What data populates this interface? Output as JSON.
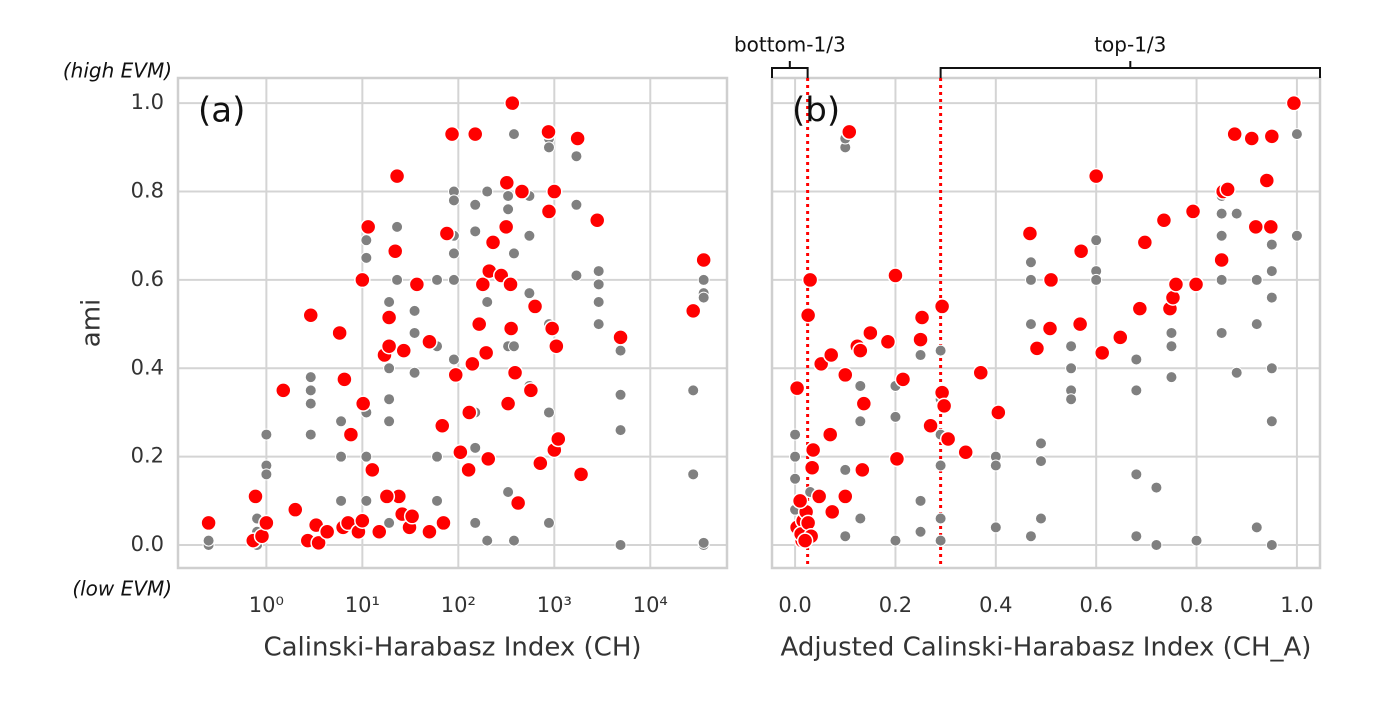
{
  "chart_data": [
    {
      "type": "scatter",
      "xscale": "log",
      "grid": true,
      "xlabel": "Calinski-Harabasz Index (CH)",
      "ylabel": "ami",
      "annotations": {
        "top": "(high EVM)",
        "bottom": "(low EVM)",
        "panel": "(a)"
      },
      "xlim": [
        0.12,
        63000
      ],
      "ylim": [
        -0.052,
        1.057
      ],
      "xticks": [
        {
          "value": 1,
          "label": "10⁰"
        },
        {
          "value": 10,
          "label": "10¹"
        },
        {
          "value": 100,
          "label": "10²"
        },
        {
          "value": 1000,
          "label": "10³"
        },
        {
          "value": 10000,
          "label": "10⁴"
        }
      ],
      "yticks": [
        {
          "value": 0,
          "label": "0.0"
        },
        0.2,
        0.4,
        0.6,
        0.8,
        {
          "value": 1,
          "label": "1.0"
        }
      ],
      "series": [
        {
          "color": "#808080",
          "x": [
            0.25,
            0.25,
            0.8,
            0.8,
            0.8,
            1,
            1,
            1,
            2.9,
            2.9,
            2.9,
            2.9,
            6,
            6,
            6,
            11,
            11,
            11,
            11,
            11,
            19,
            19,
            19,
            19,
            19,
            23,
            23,
            23,
            35,
            35,
            35,
            60,
            60,
            60,
            60,
            90,
            90,
            90,
            90,
            90,
            90,
            150,
            150,
            150,
            150,
            150,
            200,
            200,
            200,
            200,
            330,
            330,
            330,
            330,
            380,
            380,
            380,
            380,
            550,
            550,
            550,
            550,
            880,
            880,
            880,
            880,
            880,
            880,
            1700,
            1700,
            1700,
            2900,
            2900,
            2900,
            2900,
            4900,
            4900,
            4900,
            4900,
            28000,
            28000,
            36000,
            36000,
            36000,
            36000,
            36000
          ],
          "y": [
            0,
            0.01,
            0.06,
            0.03,
            0,
            0.18,
            0.16,
            0.25,
            0.38,
            0.35,
            0.32,
            0.25,
            0.1,
            0.2,
            0.28,
            0.69,
            0.65,
            0.3,
            0.2,
            0.1,
            0.55,
            0.4,
            0.33,
            0.28,
            0.05,
            0.72,
            0.6,
            0.67,
            0.48,
            0.53,
            0.39,
            0.6,
            0.45,
            0.2,
            0.1,
            0.8,
            0.78,
            0.7,
            0.66,
            0.6,
            0.42,
            0.77,
            0.71,
            0.3,
            0.22,
            0.05,
            0.8,
            0.55,
            0.2,
            0.01,
            0.79,
            0.76,
            0.45,
            0.12,
            0.93,
            0.66,
            0.45,
            0.01,
            0.79,
            0.7,
            0.57,
            0.36,
            0.92,
            0.9,
            0.75,
            0.5,
            0.3,
            0.05,
            0.88,
            0.77,
            0.61,
            0.62,
            0.59,
            0.55,
            0.5,
            0.44,
            0.34,
            0.26,
            0,
            0.35,
            0.16,
            0.6,
            0.57,
            0.56,
            0,
            0.005
          ]
        },
        {
          "color": "#ff0000",
          "x": [
            0.25,
            0.77,
            0.73,
            0.9,
            1.5,
            1.0,
            2.0,
            2.9,
            3.3,
            2.7,
            3.5,
            4.3,
            5.8,
            6.5,
            6.3,
            7.1,
            7.6,
            10,
            11.5,
            10.2,
            12.7,
            9.1,
            10,
            15,
            17,
            19,
            19,
            22,
            23,
            24,
            18,
            26,
            27,
            31,
            33,
            37,
            50,
            50,
            68,
            70,
            76,
            86,
            94,
            105,
            128,
            130,
            140,
            150,
            165,
            180,
            195,
            205,
            210,
            230,
            280,
            315,
            320,
            330,
            350,
            355,
            365,
            390,
            420,
            460,
            570,
            630,
            715,
            870,
            880,
            950,
            1000,
            1000,
            1050,
            1100,
            1750,
            1900,
            2800,
            4900,
            28000,
            36000
          ],
          "y": [
            0.05,
            0.11,
            0.01,
            0.02,
            0.35,
            0.05,
            0.08,
            0.52,
            0.045,
            0.01,
            0.005,
            0.03,
            0.48,
            0.375,
            0.04,
            0.05,
            0.25,
            0.6,
            0.72,
            0.32,
            0.17,
            0.03,
            0.055,
            0.03,
            0.43,
            0.45,
            0.515,
            0.665,
            0.835,
            0.11,
            0.11,
            0.07,
            0.44,
            0.04,
            0.065,
            0.59,
            0.46,
            0.03,
            0.27,
            0.05,
            0.705,
            0.93,
            0.385,
            0.21,
            0.17,
            0.3,
            0.41,
            0.93,
            0.5,
            0.59,
            0.435,
            0.195,
            0.62,
            0.685,
            0.61,
            0.72,
            0.82,
            0.32,
            0.59,
            0.49,
            1.0,
            0.39,
            0.095,
            0.8,
            0.35,
            0.54,
            0.185,
            0.935,
            0.755,
            0.49,
            0.215,
            0.8,
            0.45,
            0.24,
            0.92,
            0.16,
            0.735,
            0.47,
            0.53,
            0.645
          ]
        }
      ]
    },
    {
      "type": "scatter",
      "grid": true,
      "ytick_labels": false,
      "xlabel": "Adjusted Calinski-Harabasz Index  (CH_A)",
      "annotations": {
        "panel": "(b)"
      },
      "regions": [
        "bottom-1/3",
        "top-1/3"
      ],
      "thresholds": [
        0.025,
        0.29
      ],
      "threshold_color": "#ff0000",
      "xlim": [
        -0.046,
        1.046
      ],
      "ylim": [
        -0.052,
        1.057
      ],
      "xticks": [
        {
          "value": 0,
          "label": "0.0"
        },
        0.2,
        0.4,
        0.6,
        0.8,
        {
          "value": 1,
          "label": "1.0"
        }
      ],
      "yticks": [
        0,
        0.2,
        0.4,
        0.6,
        0.8,
        1
      ],
      "series": [
        {
          "color": "#808080",
          "x": [
            0,
            0,
            0,
            0,
            0,
            0.03,
            0.03,
            0.1,
            0.1,
            0.1,
            0.1,
            0.13,
            0.13,
            0.13,
            0.2,
            0.2,
            0.2,
            0.2,
            0.25,
            0.25,
            0.25,
            0.29,
            0.29,
            0.29,
            0.29,
            0.29,
            0.29,
            0.4,
            0.4,
            0.4,
            0.47,
            0.47,
            0.47,
            0.47,
            0.49,
            0.49,
            0.49,
            0.55,
            0.55,
            0.55,
            0.55,
            0.6,
            0.6,
            0.6,
            0.68,
            0.68,
            0.68,
            0.68,
            0.72,
            0.72,
            0.75,
            0.75,
            0.75,
            0.8,
            0.85,
            0.85,
            0.85,
            0.85,
            0.85,
            0.88,
            0.88,
            0.92,
            0.92,
            0.92,
            0.92,
            0.95,
            0.95,
            0.95,
            0.95,
            0.95,
            0.95,
            1.0,
            1.0
          ],
          "y": [
            0.25,
            0.2,
            0.15,
            0.08,
            0.04,
            0.05,
            0.12,
            0.9,
            0.92,
            0.17,
            0.02,
            0.36,
            0.28,
            0.06,
            0.36,
            0.29,
            0.2,
            0.01,
            0.43,
            0.1,
            0.03,
            0.44,
            0.33,
            0.25,
            0.18,
            0.06,
            0.01,
            0.2,
            0.18,
            0.04,
            0.64,
            0.6,
            0.5,
            0.02,
            0.23,
            0.19,
            0.06,
            0.45,
            0.4,
            0.35,
            0.33,
            0.69,
            0.62,
            0.6,
            0.42,
            0.35,
            0.16,
            0.02,
            0.13,
            0,
            0.48,
            0.45,
            0.38,
            0.01,
            0.79,
            0.75,
            0.7,
            0.6,
            0.48,
            0.75,
            0.39,
            0.72,
            0.6,
            0.5,
            0.04,
            0.68,
            0.62,
            0.56,
            0.4,
            0.28,
            0,
            0.93,
            0.7
          ]
        },
        {
          "color": "#ff0000",
          "x": [
            0.004,
            0.014,
            0.01,
            0.026,
            0.03,
            0.036,
            0.034,
            0.048,
            0.052,
            0.072,
            0.07,
            0.074,
            0.1,
            0.1,
            0.108,
            0.124,
            0.13,
            0.134,
            0.137,
            0.15,
            0.185,
            0.2,
            0.203,
            0.215,
            0.25,
            0.253,
            0.27,
            0.293,
            0.293,
            0.297,
            0.305,
            0.34,
            0.37,
            0.405,
            0.468,
            0.482,
            0.508,
            0.51,
            0.568,
            0.57,
            0.6,
            0.612,
            0.648,
            0.697,
            0.687,
            0.735,
            0.747,
            0.753,
            0.759,
            0.793,
            0.799,
            0.85,
            0.853,
            0.862,
            0.876,
            0.91,
            0.918,
            0.94,
            0.95,
            0.948,
            0.994,
            0.004,
            0.016,
            0.022,
            0.012,
            0.026,
            0.01,
            0.032,
            0.02
          ],
          "y": [
            0.355,
            0.01,
            0.035,
            0.52,
            0.6,
            0.215,
            0.175,
            0.11,
            0.41,
            0.43,
            0.25,
            0.075,
            0.11,
            0.385,
            0.935,
            0.45,
            0.44,
            0.17,
            0.32,
            0.48,
            0.46,
            0.61,
            0.195,
            0.375,
            0.465,
            0.515,
            0.27,
            0.54,
            0.345,
            0.315,
            0.24,
            0.21,
            0.39,
            0.3,
            0.705,
            0.445,
            0.49,
            0.6,
            0.5,
            0.665,
            0.835,
            0.435,
            0.47,
            0.685,
            0.535,
            0.735,
            0.535,
            0.56,
            0.59,
            0.755,
            0.59,
            0.645,
            0.8,
            0.805,
            0.93,
            0.92,
            0.72,
            0.825,
            0.925,
            0.72,
            1.0,
            0.04,
            0.055,
            0.075,
            0.025,
            0.05,
            0.1,
            0.02,
            0.01
          ]
        }
      ]
    }
  ]
}
